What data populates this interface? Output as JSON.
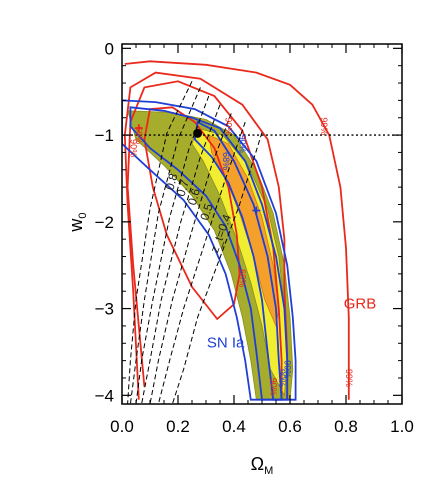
{
  "chart_data": {
    "type": "contour",
    "title": "",
    "xlabel": "Ω",
    "xlabel_sub": "M",
    "ylabel": "w",
    "ylabel_sub": "0",
    "xlim": [
      0.0,
      1.0
    ],
    "ylim": [
      -4.1,
      0.05
    ],
    "x_ticks": [
      {
        "value": 0.0,
        "label": "0.0"
      },
      {
        "value": 0.2,
        "label": "0.2"
      },
      {
        "value": 0.4,
        "label": "0.4"
      },
      {
        "value": 0.6,
        "label": "0.6"
      },
      {
        "value": 0.8,
        "label": "0.8"
      },
      {
        "value": 1.0,
        "label": "1.0"
      }
    ],
    "y_ticks": [
      {
        "value": 0,
        "label": "0"
      },
      {
        "value": -1,
        "label": "−1"
      },
      {
        "value": -2,
        "label": "−2"
      },
      {
        "value": -3,
        "label": "−3"
      },
      {
        "value": -4,
        "label": "−4"
      }
    ],
    "reference_line": {
      "y": -1,
      "style": "dotted"
    },
    "markers": [
      {
        "x": 0.27,
        "y": -0.98,
        "kind": "filled-circle"
      },
      {
        "x": 0.48,
        "y": -1.87,
        "kind": "plus",
        "color": "#1f3fd6"
      },
      {
        "x": 0.06,
        "y": -0.92,
        "kind": "plus",
        "color": "#e8291c"
      }
    ],
    "series": [
      {
        "name": "GRB",
        "color": "#e8291c",
        "contours": [
          {
            "level": "68%",
            "points": [
              [
                0.34,
                -3.12
              ],
              [
                0.25,
                -2.75
              ],
              [
                0.16,
                -2.15
              ],
              [
                0.11,
                -1.6
              ],
              [
                0.08,
                -1.05
              ],
              [
                0.1,
                -0.7
              ],
              [
                0.18,
                -0.68
              ],
              [
                0.26,
                -0.85
              ],
              [
                0.33,
                -1.15
              ],
              [
                0.38,
                -1.6
              ],
              [
                0.41,
                -2.15
              ],
              [
                0.42,
                -2.6
              ],
              [
                0.4,
                -2.95
              ],
              [
                0.34,
                -3.12
              ]
            ]
          },
          {
            "level": "90%",
            "points": [
              [
                0.08,
                -3.9
              ],
              [
                0.04,
                -2.5
              ],
              [
                0.02,
                -1.6
              ],
              [
                0.03,
                -0.85
              ],
              [
                0.08,
                -0.45
              ],
              [
                0.2,
                -0.38
              ],
              [
                0.33,
                -0.55
              ],
              [
                0.43,
                -0.95
              ],
              [
                0.5,
                -1.6
              ],
              [
                0.54,
                -2.3
              ],
              [
                0.56,
                -3.0
              ],
              [
                0.57,
                -3.6
              ],
              [
                0.57,
                -4.05
              ]
            ]
          },
          {
            "level": "90%",
            "points": [
              [
                0.06,
                -4.05
              ],
              [
                0.04,
                -2.8
              ],
              [
                0.02,
                -1.8
              ],
              [
                0.01,
                -1.0
              ],
              [
                0.03,
                -0.45
              ],
              [
                0.12,
                -0.28
              ],
              [
                0.28,
                -0.35
              ],
              [
                0.43,
                -0.65
              ],
              [
                0.52,
                -1.05
              ],
              [
                0.56,
                -1.6
              ],
              [
                0.58,
                -2.2
              ],
              [
                0.58,
                -2.8
              ],
              [
                0.59,
                -3.5
              ],
              [
                0.59,
                -4.05
              ]
            ]
          },
          {
            "level": "99%",
            "points": [
              [
                0.01,
                -0.18
              ],
              [
                0.1,
                -0.15
              ],
              [
                0.3,
                -0.19
              ],
              [
                0.48,
                -0.28
              ],
              [
                0.6,
                -0.42
              ],
              [
                0.68,
                -0.65
              ],
              [
                0.74,
                -1.0
              ],
              [
                0.78,
                -1.6
              ],
              [
                0.8,
                -2.3
              ],
              [
                0.81,
                -3.1
              ],
              [
                0.81,
                -4.05
              ]
            ]
          }
        ],
        "label": "GRB"
      },
      {
        "name": "SN Ia",
        "color": "#1f3fd6",
        "contours": [
          {
            "level": "68%",
            "points": [
              [
                0.27,
                -0.85
              ],
              [
                0.33,
                -0.95
              ],
              [
                0.4,
                -1.3
              ],
              [
                0.47,
                -1.8
              ],
              [
                0.52,
                -2.4
              ],
              [
                0.55,
                -3.0
              ],
              [
                0.56,
                -3.6
              ],
              [
                0.57,
                -4.05
              ],
              [
                0.54,
                -4.05
              ],
              [
                0.52,
                -3.5
              ],
              [
                0.5,
                -2.9
              ],
              [
                0.47,
                -2.4
              ],
              [
                0.43,
                -1.95
              ],
              [
                0.38,
                -1.55
              ],
              [
                0.32,
                -1.25
              ],
              [
                0.26,
                -1.05
              ],
              [
                0.27,
                -0.85
              ]
            ]
          },
          {
            "level": "90%",
            "points": [
              [
                0.03,
                -0.68
              ],
              [
                0.15,
                -0.72
              ],
              [
                0.25,
                -0.8
              ],
              [
                0.35,
                -0.92
              ],
              [
                0.44,
                -1.3
              ],
              [
                0.5,
                -1.8
              ],
              [
                0.55,
                -2.4
              ],
              [
                0.58,
                -3.0
              ],
              [
                0.59,
                -3.6
              ],
              [
                0.59,
                -4.05
              ],
              [
                0.5,
                -4.05
              ],
              [
                0.48,
                -3.5
              ],
              [
                0.46,
                -3.0
              ],
              [
                0.42,
                -2.5
              ],
              [
                0.37,
                -2.05
              ],
              [
                0.3,
                -1.7
              ],
              [
                0.2,
                -1.4
              ],
              [
                0.1,
                -1.15
              ],
              [
                0.03,
                -0.9
              ],
              [
                0.03,
                -0.68
              ]
            ]
          },
          {
            "level": "99%",
            "points": [
              [
                0.0,
                -0.6
              ],
              [
                0.12,
                -0.62
              ],
              [
                0.26,
                -0.7
              ],
              [
                0.38,
                -0.9
              ],
              [
                0.48,
                -1.3
              ],
              [
                0.55,
                -1.9
              ],
              [
                0.59,
                -2.5
              ],
              [
                0.61,
                -3.1
              ],
              [
                0.62,
                -3.6
              ],
              [
                0.62,
                -4.05
              ],
              [
                0.46,
                -4.05
              ],
              [
                0.44,
                -3.6
              ],
              [
                0.41,
                -3.1
              ],
              [
                0.37,
                -2.6
              ],
              [
                0.31,
                -2.15
              ],
              [
                0.22,
                -1.75
              ],
              [
                0.1,
                -1.4
              ],
              [
                0.0,
                -1.1
              ],
              [
                0.0,
                -0.6
              ]
            ]
          }
        ],
        "label": "SN Ia"
      },
      {
        "name": "Combined",
        "color": "#f5a02a",
        "contours": [
          {
            "level": "68%",
            "points": [
              [
                0.31,
                -1.0
              ],
              [
                0.38,
                -1.1
              ],
              [
                0.45,
                -1.5
              ],
              [
                0.5,
                -1.95
              ],
              [
                0.54,
                -2.5
              ],
              [
                0.56,
                -3.0
              ],
              [
                0.55,
                -3.2
              ],
              [
                0.51,
                -2.9
              ],
              [
                0.47,
                -2.4
              ],
              [
                0.42,
                -1.9
              ],
              [
                0.37,
                -1.5
              ],
              [
                0.32,
                -1.2
              ],
              [
                0.31,
                -1.0
              ]
            ]
          },
          {
            "level": "90%",
            "points": [
              [
                0.27,
                -0.92
              ],
              [
                0.36,
                -1.0
              ],
              [
                0.45,
                -1.35
              ],
              [
                0.52,
                -1.85
              ],
              [
                0.56,
                -2.4
              ],
              [
                0.58,
                -3.0
              ],
              [
                0.59,
                -3.6
              ],
              [
                0.58,
                -4.0
              ],
              [
                0.53,
                -3.7
              ],
              [
                0.5,
                -3.2
              ],
              [
                0.46,
                -2.7
              ],
              [
                0.41,
                -2.2
              ],
              [
                0.35,
                -1.7
              ],
              [
                0.29,
                -1.3
              ],
              [
                0.25,
                -1.1
              ],
              [
                0.27,
                -0.92
              ]
            ]
          },
          {
            "level": "99%",
            "points": [
              [
                0.02,
                -0.72
              ],
              [
                0.18,
                -0.74
              ],
              [
                0.3,
                -0.82
              ],
              [
                0.4,
                -1.0
              ],
              [
                0.48,
                -1.4
              ],
              [
                0.54,
                -1.9
              ],
              [
                0.58,
                -2.5
              ],
              [
                0.6,
                -3.1
              ],
              [
                0.61,
                -3.7
              ],
              [
                0.6,
                -4.05
              ],
              [
                0.48,
                -4.05
              ],
              [
                0.46,
                -3.6
              ],
              [
                0.43,
                -3.1
              ],
              [
                0.39,
                -2.6
              ],
              [
                0.33,
                -2.1
              ],
              [
                0.25,
                -1.7
              ],
              [
                0.15,
                -1.35
              ],
              [
                0.05,
                -1.05
              ],
              [
                0.02,
                -0.72
              ]
            ]
          }
        ]
      }
    ],
    "redshift_lines": [
      {
        "label": "0.4",
        "text": "z_t=0.4",
        "points": [
          [
            0.5,
            -0.97
          ],
          [
            0.42,
            -1.8
          ],
          [
            0.34,
            -2.5
          ],
          [
            0.27,
            -3.1
          ],
          [
            0.22,
            -3.7
          ],
          [
            0.18,
            -4.1
          ]
        ]
      },
      {
        "label": "0.5",
        "text": "0.5",
        "points": [
          [
            0.44,
            -0.85
          ],
          [
            0.37,
            -1.5
          ],
          [
            0.29,
            -2.3
          ],
          [
            0.22,
            -3.0
          ],
          [
            0.17,
            -3.6
          ],
          [
            0.13,
            -4.1
          ]
        ]
      },
      {
        "label": "0.6",
        "text": "0.6",
        "points": [
          [
            0.39,
            -0.75
          ],
          [
            0.32,
            -1.35
          ],
          [
            0.25,
            -2.1
          ],
          [
            0.18,
            -2.9
          ],
          [
            0.13,
            -3.6
          ],
          [
            0.1,
            -4.1
          ]
        ]
      },
      {
        "label": "0.7",
        "text": "0.7",
        "points": [
          [
            0.35,
            -0.65
          ],
          [
            0.28,
            -1.25
          ],
          [
            0.21,
            -2.0
          ],
          [
            0.14,
            -2.9
          ],
          [
            0.1,
            -3.6
          ],
          [
            0.07,
            -4.1
          ]
        ]
      },
      {
        "label": "0.8",
        "text": "0.8",
        "points": [
          [
            0.31,
            -0.55
          ],
          [
            0.24,
            -1.15
          ],
          [
            0.17,
            -1.95
          ],
          [
            0.11,
            -2.9
          ],
          [
            0.07,
            -3.6
          ],
          [
            0.05,
            -4.1
          ]
        ]
      },
      {
        "label": "",
        "text": "",
        "points": [
          [
            0.28,
            -0.45
          ],
          [
            0.2,
            -1.05
          ],
          [
            0.13,
            -1.9
          ],
          [
            0.08,
            -2.9
          ],
          [
            0.05,
            -3.6
          ],
          [
            0.03,
            -4.1
          ]
        ]
      },
      {
        "label": "",
        "text": "",
        "points": [
          [
            0.25,
            -0.38
          ],
          [
            0.16,
            -0.98
          ],
          [
            0.1,
            -1.85
          ],
          [
            0.05,
            -2.9
          ],
          [
            0.03,
            -3.6
          ],
          [
            0.02,
            -4.1
          ]
        ]
      }
    ],
    "contour_labels": [
      {
        "text": "68%",
        "color": "#e8291c",
        "x": 0.05,
        "y": -1.0
      },
      {
        "text": "90%",
        "color": "#e8291c",
        "x": 0.03,
        "y": -1.15
      },
      {
        "text": "90%",
        "color": "#e8291c",
        "x": 0.37,
        "y": -0.9
      },
      {
        "text": "99%",
        "color": "#e8291c",
        "x": 0.71,
        "y": -0.9
      },
      {
        "text": "68%",
        "color": "#e8291c",
        "x": 0.42,
        "y": -2.65
      },
      {
        "text": "90%",
        "color": "#e8291c",
        "x": 0.53,
        "y": -3.9
      },
      {
        "text": "99%",
        "color": "#e8291c",
        "x": 0.8,
        "y": -3.8
      },
      {
        "text": "68%",
        "color": "#1f3fd6",
        "x": 0.36,
        "y": -1.3
      },
      {
        "text": "90%",
        "color": "#1f3fd6",
        "x": 0.42,
        "y": -1.1
      },
      {
        "text": "99%",
        "color": "#1f3fd6",
        "x": 0.58,
        "y": -3.7
      },
      {
        "text": "90%",
        "color": "#1f3fd6",
        "x": 0.56,
        "y": -3.8
      }
    ],
    "series_labels": [
      {
        "text": "GRB",
        "color": "#e8291c",
        "x": 0.85,
        "y": -3.0
      },
      {
        "text": "SN Ia",
        "color": "#1f3fd6",
        "x": 0.37,
        "y": -3.45
      }
    ]
  }
}
